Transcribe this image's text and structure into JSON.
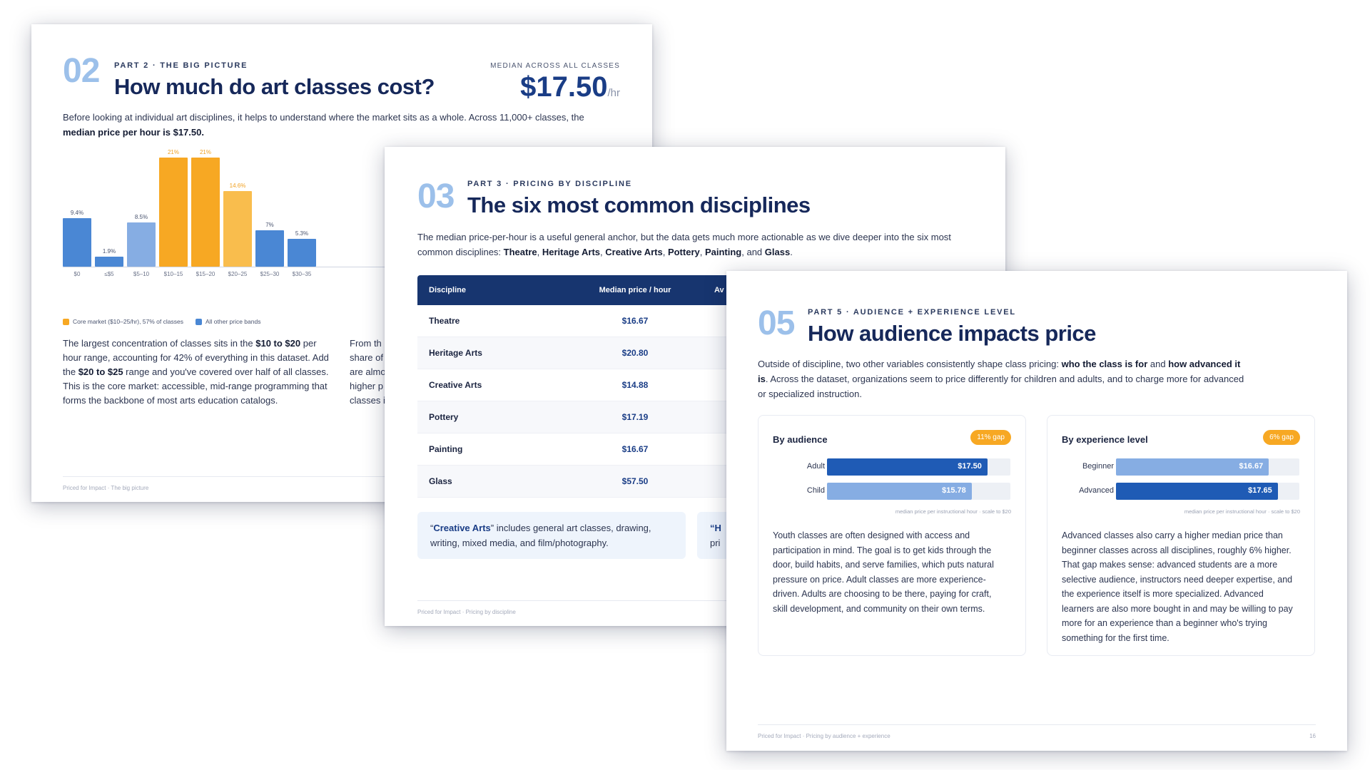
{
  "slide2": {
    "section_number": "02",
    "eyebrow": "PART 2 · THE BIG PICTURE",
    "title": "How much do art classes cost?",
    "median_label": "MEDIAN ACROSS ALL CLASSES",
    "median_value": "$17.50",
    "median_unit": "/hr",
    "lead_1": "Before looking at individual art disciplines, it helps to understand where the market sits as a whole. Across 11,000+ classes, the",
    "lead_bold": "median price per hour is $17.50.",
    "legend_core": "Core market ($10–25/hr), 57% of classes",
    "legend_other": "All other price bands",
    "para_left": {
      "t1": "The largest concentration of classes sits in the ",
      "b1": "$10 to $20",
      "t2": " per hour range, accounting for 42% of everything in this dataset. Add the ",
      "b2": "$20 to $25",
      "t3": " range and you've covered over half of all classes. This is the core market: accessible, mid-range programming that forms the backbone of most arts education catalogs."
    },
    "para_right_lines": [
      "From th",
      "share of",
      "are almo",
      "higher p",
      "classes i"
    ],
    "footer": "Priced for Impact · The big picture"
  },
  "chart_data": {
    "type": "bar",
    "categories": [
      "$0",
      "≤$5",
      "$5–10",
      "$10–15",
      "$15–20",
      "$20–25",
      "$25–30",
      "$30–35"
    ],
    "values": [
      9.4,
      1.9,
      8.5,
      21,
      21,
      14.6,
      7,
      5.3
    ],
    "value_labels": [
      "9.4%",
      "1.9%",
      "8.5%",
      "21%",
      "21%",
      "14.6%",
      "7%",
      "5.3%"
    ],
    "core_market": [
      false,
      false,
      false,
      true,
      true,
      true,
      false,
      false
    ],
    "colors": {
      "core": "#f7a823",
      "core_light": "#f9bd4d",
      "other": "#4a87d4",
      "other_light": "#86ade3",
      "core_label": "#f0a020"
    },
    "ylim": [
      0,
      22
    ],
    "legend": [
      "Core market ($10–25/hr), 57% of classes",
      "All other price bands"
    ],
    "legend_position": "bottom-left",
    "title": "",
    "xlabel": "",
    "ylabel": ""
  },
  "slide3": {
    "section_number": "03",
    "eyebrow": "PART 3 · PRICING BY DISCIPLINE",
    "title": "The six most common disciplines",
    "lead_1": "The median price-per-hour is a useful general anchor, but the data gets much more actionable as we dive deeper into the six most common disciplines: ",
    "lead_b1": "Theatre",
    "lead_b2": "Heritage Arts",
    "lead_b3": "Creative Arts",
    "lead_b4": "Pottery",
    "lead_b5": "Painting",
    "lead_b6": "Glass",
    "table": {
      "headers": [
        "Discipline",
        "Median price / hour",
        "Av"
      ],
      "rows": [
        {
          "discipline": "Theatre",
          "median": "$16.67"
        },
        {
          "discipline": "Heritage Arts",
          "median": "$20.80"
        },
        {
          "discipline": "Creative Arts",
          "median": "$14.88"
        },
        {
          "discipline": "Pottery",
          "median": "$17.19"
        },
        {
          "discipline": "Painting",
          "median": "$16.67"
        },
        {
          "discipline": "Glass",
          "median": "$57.50"
        }
      ]
    },
    "note_1": {
      "quote_open": "“",
      "bold": "Creative Arts",
      "text": "” includes general art classes, drawing, writing, mixed media, and film/photography."
    },
    "note_2": {
      "line1": "“H",
      "line2": "pri"
    },
    "footer": "Priced for Impact · Pricing by discipline"
  },
  "slide5": {
    "section_number": "05",
    "eyebrow": "PART 5 · AUDIENCE + EXPERIENCE LEVEL",
    "title": "How audience impacts price",
    "lead_1": "Outside of discipline, two other variables consistently shape class pricing: ",
    "lead_b1": "who the class is for",
    "lead_2": " and ",
    "lead_b2": "how advanced it is",
    "lead_3": ". Across the dataset, organizations seem to price differently for children and adults, and to charge more for advanced or specialized instruction.",
    "audience_card": {
      "title": "By audience",
      "badge": "11% gap",
      "rows": [
        {
          "label": "Adult",
          "value": "$17.50",
          "amount": 17.5,
          "color": "#1f5bb5"
        },
        {
          "label": "Child",
          "value": "$15.78",
          "amount": 15.78,
          "color": "#86ade3"
        }
      ],
      "scale_max": 20,
      "scale_note": "median price per instructional hour · scale to $20",
      "para": "Youth classes are often designed with access and participation in mind. The goal is to get kids through the door, build habits, and serve families, which puts natural pressure on price. Adult classes are more experience-driven. Adults are choosing to be there, paying for craft, skill development, and community on their own terms."
    },
    "experience_card": {
      "title": "By experience level",
      "badge": "6% gap",
      "rows": [
        {
          "label": "Beginner",
          "value": "$16.67",
          "amount": 16.67,
          "color": "#86ade3"
        },
        {
          "label": "Advanced",
          "value": "$17.65",
          "amount": 17.65,
          "color": "#1f5bb5"
        }
      ],
      "scale_max": 20,
      "scale_note": "median price per instructional hour · scale to $20",
      "para": "Advanced classes also carry a higher median price than beginner classes across all disciplines, roughly 6% higher. That gap makes sense: advanced students are a more selective audience, instructors need deeper expertise, and the experience itself is more specialized. Advanced learners are also more bought in and may be willing to pay more for an experience than a beginner who's trying something for the first time."
    },
    "footer": "Priced for Impact · Pricing by audience + experience",
    "page_number": "16"
  }
}
